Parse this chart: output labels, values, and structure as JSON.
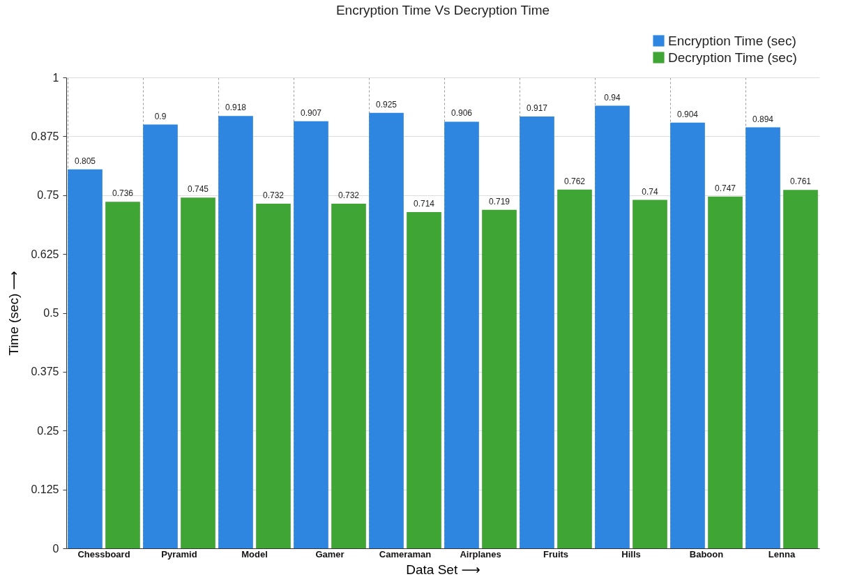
{
  "chart_data": {
    "type": "bar",
    "title": "Encryption Time Vs Decryption Time",
    "xlabel": "Data Set ⟶",
    "ylabel": "Time (sec) ⟶",
    "categories": [
      "Chessboard",
      "Pyramid",
      "Model",
      "Gamer",
      "Cameraman",
      "Airplanes",
      "Fruits",
      "Hills",
      "Baboon",
      "Lenna"
    ],
    "series": [
      {
        "name": "Encryption Time (sec)",
        "color": "#2e86e0",
        "values": [
          0.805,
          0.9,
          0.918,
          0.907,
          0.925,
          0.906,
          0.917,
          0.94,
          0.904,
          0.894
        ]
      },
      {
        "name": "Decryption Time (sec)",
        "color": "#3fa535",
        "values": [
          0.736,
          0.745,
          0.732,
          0.732,
          0.714,
          0.719,
          0.762,
          0.74,
          0.747,
          0.761
        ]
      }
    ],
    "ylim": [
      0,
      1
    ],
    "yticks": [
      0,
      0.125,
      0.25,
      0.375,
      0.5,
      0.625,
      0.75,
      0.875,
      1
    ],
    "grid": true,
    "legend": "top right",
    "data_labels": true
  }
}
